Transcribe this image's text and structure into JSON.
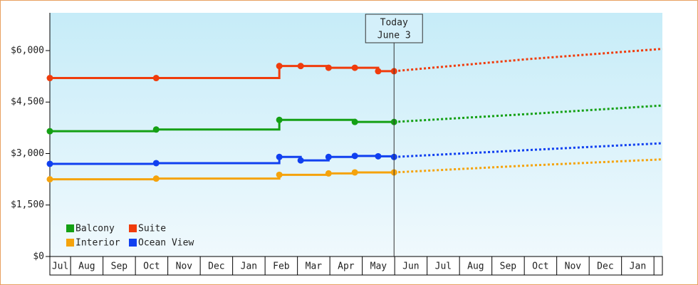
{
  "chart_data": {
    "type": "step-line",
    "xlim": [
      -0.64,
      18.26
    ],
    "xticks": [
      {
        "value": -0.5,
        "label": "Jul"
      },
      {
        "value": 0.5,
        "label": "Aug"
      },
      {
        "value": 1.5,
        "label": "Sep"
      },
      {
        "value": 2.5,
        "label": "Oct"
      },
      {
        "value": 3.5,
        "label": "Nov"
      },
      {
        "value": 4.5,
        "label": "Dec"
      },
      {
        "value": 5.5,
        "label": "Jan"
      },
      {
        "value": 6.5,
        "label": "Feb"
      },
      {
        "value": 7.5,
        "label": "Mar"
      },
      {
        "value": 8.5,
        "label": "Apr"
      },
      {
        "value": 9.5,
        "label": "May"
      },
      {
        "value": 10.5,
        "label": "Jun"
      },
      {
        "value": 11.5,
        "label": "Jul"
      },
      {
        "value": 12.5,
        "label": "Aug"
      },
      {
        "value": 13.5,
        "label": "Sep"
      },
      {
        "value": 14.5,
        "label": "Oct"
      },
      {
        "value": 15.5,
        "label": "Nov"
      },
      {
        "value": 16.5,
        "label": "Dec"
      },
      {
        "value": 17.5,
        "label": "Jan"
      }
    ],
    "ylim": [
      0,
      7100
    ],
    "yticks": [
      {
        "value": 0,
        "label": "$0"
      },
      {
        "value": 1500,
        "label": "$1,500"
      },
      {
        "value": 3000,
        "label": "$3,000"
      },
      {
        "value": 4500,
        "label": "$4,500"
      },
      {
        "value": 6000,
        "label": "$6,000"
      }
    ],
    "legend": "lower left",
    "annotation": {
      "x": 9.98,
      "lines": [
        "Today",
        "June 3"
      ]
    },
    "series": [
      {
        "name": "Balcony",
        "color": "#14a014",
        "x": [
          -0.64,
          2.64,
          6.44,
          8.77,
          9.98
        ],
        "values": [
          3650,
          3700,
          3980,
          3920,
          3920
        ],
        "forecast": {
          "x": [
            9.98,
            14.1,
            18.26
          ],
          "values": [
            3920,
            4150,
            4400
          ]
        }
      },
      {
        "name": "Suite",
        "color": "#f03c0c",
        "x": [
          -0.64,
          2.64,
          6.44,
          7.1,
          7.96,
          8.77,
          9.49,
          9.98
        ],
        "values": [
          5200,
          5200,
          5550,
          5550,
          5500,
          5500,
          5400,
          5400
        ],
        "forecast": {
          "x": [
            9.98,
            14.1,
            18.26
          ],
          "values": [
            5400,
            5750,
            6050
          ]
        }
      },
      {
        "name": "Interior",
        "color": "#f5a30c",
        "x": [
          -0.64,
          2.64,
          6.44,
          7.96,
          8.77,
          9.98
        ],
        "values": [
          2250,
          2270,
          2380,
          2420,
          2450,
          2450
        ],
        "forecast": {
          "x": [
            9.98,
            14.1,
            18.26
          ],
          "values": [
            2450,
            2650,
            2830
          ]
        }
      },
      {
        "name": "Ocean View",
        "color": "#1040f0",
        "x": [
          -0.64,
          2.64,
          6.44,
          7.1,
          7.96,
          8.77,
          9.49,
          9.98
        ],
        "values": [
          2700,
          2720,
          2900,
          2800,
          2900,
          2930,
          2920,
          2900
        ],
        "forecast": {
          "x": [
            9.98,
            14.1,
            18.26
          ],
          "values": [
            2900,
            3100,
            3300
          ]
        }
      }
    ]
  }
}
